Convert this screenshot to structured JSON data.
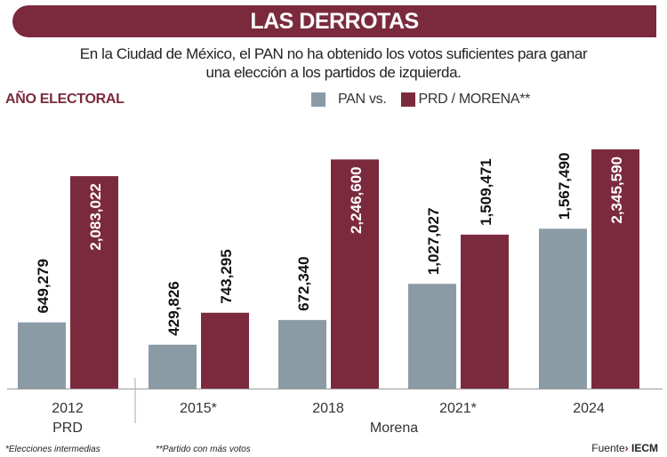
{
  "header": {
    "title": "LAS DERROTAS",
    "subtitle_line1": "En la Ciudad de México, el PAN no ha obtenido los votos suficientes para ganar",
    "subtitle_line2": "una elección a los partidos de izquierda."
  },
  "chart_data": {
    "type": "bar",
    "xlabel": "AÑO ELECTORAL",
    "categories": [
      "2012",
      "2015*",
      "2018",
      "2021*",
      "2024"
    ],
    "category_groups": [
      {
        "label": "PRD",
        "categories": [
          "2012"
        ]
      },
      {
        "label": "Morena",
        "categories": [
          "2015*",
          "2018",
          "2021*",
          "2024"
        ]
      }
    ],
    "series": [
      {
        "name": "PAN vs.",
        "color": "#8b9ba6",
        "values": [
          649279,
          429826,
          672340,
          1027027,
          1567490
        ],
        "labels": [
          "649,279",
          "429,826",
          "672,340",
          "1,027,027",
          "1,567,490"
        ]
      },
      {
        "name": "PRD / MORENA**",
        "color": "#7b2a3e",
        "values": [
          2083022,
          743295,
          2246600,
          1509471,
          2345590
        ],
        "labels": [
          "2,083,022",
          "743,295",
          "2,246,600",
          "1,509,471",
          "2,345,590"
        ]
      }
    ],
    "legend": "top-right",
    "grid": false
  },
  "footnotes": {
    "note1": "*Elecciones intermedias",
    "note2": "**Partido con más votos"
  },
  "source": {
    "label": "Fuente",
    "arrow": "›",
    "value": "IECM"
  }
}
